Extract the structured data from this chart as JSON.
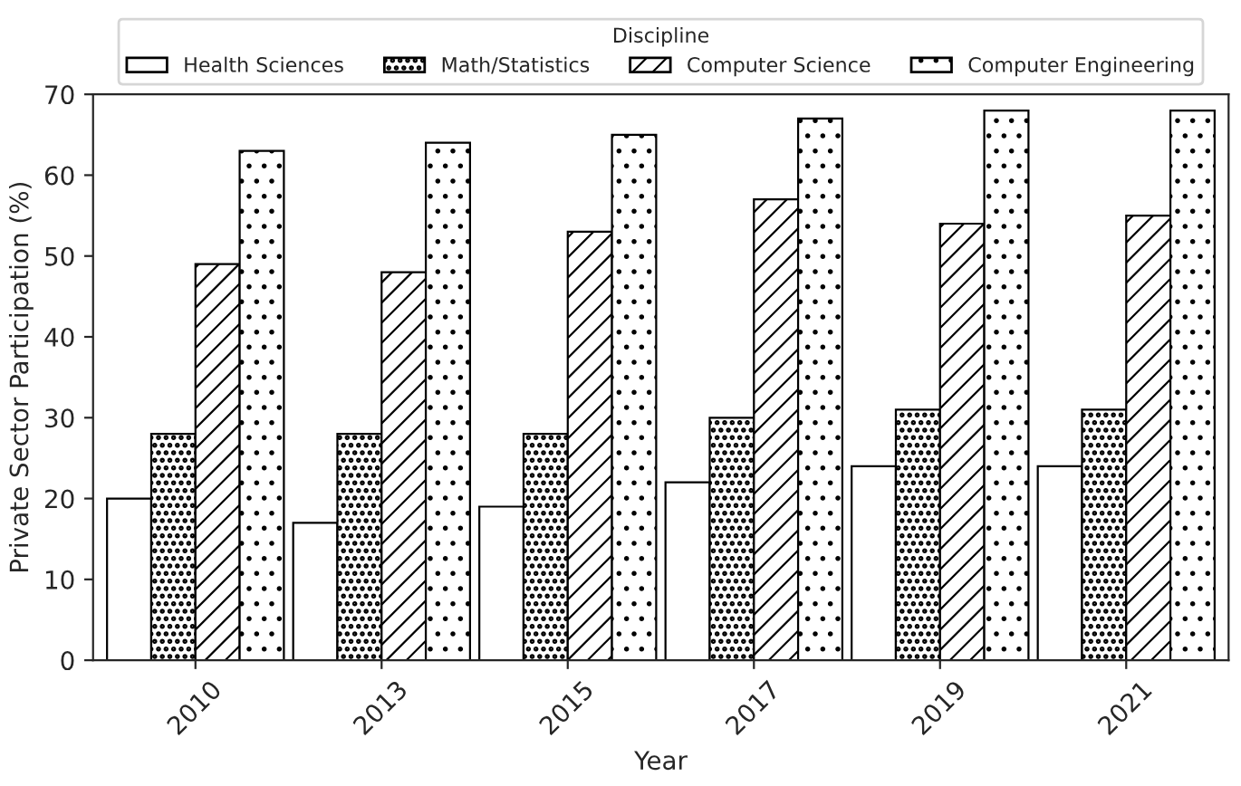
{
  "chart_data": {
    "type": "bar",
    "xlabel": "Year",
    "ylabel": "Private Sector Participation (%)",
    "legend_title": "Discipline",
    "categories": [
      "2010",
      "2013",
      "2015",
      "2017",
      "2019",
      "2021"
    ],
    "series": [
      {
        "name": "Health Sciences",
        "color": "#ffffff",
        "values": [
          20,
          17,
          19,
          22,
          24,
          24
        ]
      },
      {
        "name": "Math/Statistics",
        "values": [
          28,
          28,
          28,
          30,
          31,
          31
        ]
      },
      {
        "name": "Computer Science",
        "values": [
          49,
          48,
          53,
          57,
          54,
          55
        ]
      },
      {
        "name": "Computer Engineering",
        "values": [
          63,
          64,
          65,
          67,
          68,
          68
        ]
      }
    ],
    "ylim": [
      0,
      70
    ],
    "yticks": [
      0,
      10,
      20,
      30,
      40,
      50,
      60,
      70
    ],
    "grid": false,
    "legend": "top"
  }
}
